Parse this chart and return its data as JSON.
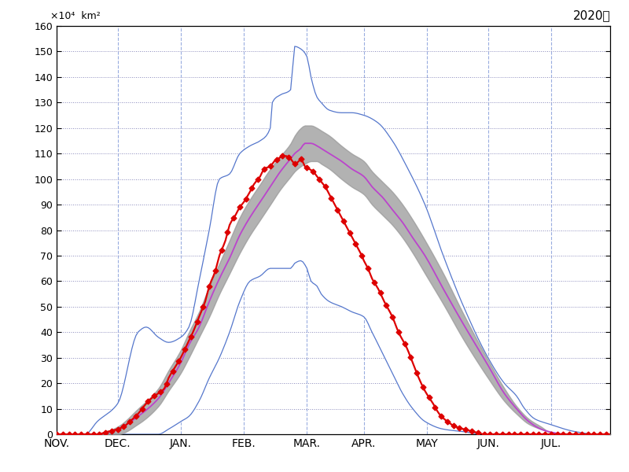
{
  "title_year": "2020年",
  "unit_label": "×10⁴  km²",
  "ylim": [
    0,
    160
  ],
  "yticks": [
    0,
    10,
    20,
    30,
    40,
    50,
    60,
    70,
    80,
    90,
    100,
    110,
    120,
    130,
    140,
    150,
    160
  ],
  "months": [
    "NOV.",
    "DEC.",
    "JAN.",
    "FEB.",
    "MAR.",
    "APR.",
    "MAY",
    "JUN.",
    "JUL."
  ],
  "month_day_offsets": [
    0,
    30,
    61,
    92,
    123,
    151,
    182,
    212,
    243
  ],
  "background_color": "#ffffff",
  "grid_color": "#8888bb",
  "blue_line_color": "#5577cc",
  "purple_line_color": "#bb44cc",
  "gray_fill_color": "#999999",
  "red_line_color": "#dd0000",
  "n_days": 273
}
